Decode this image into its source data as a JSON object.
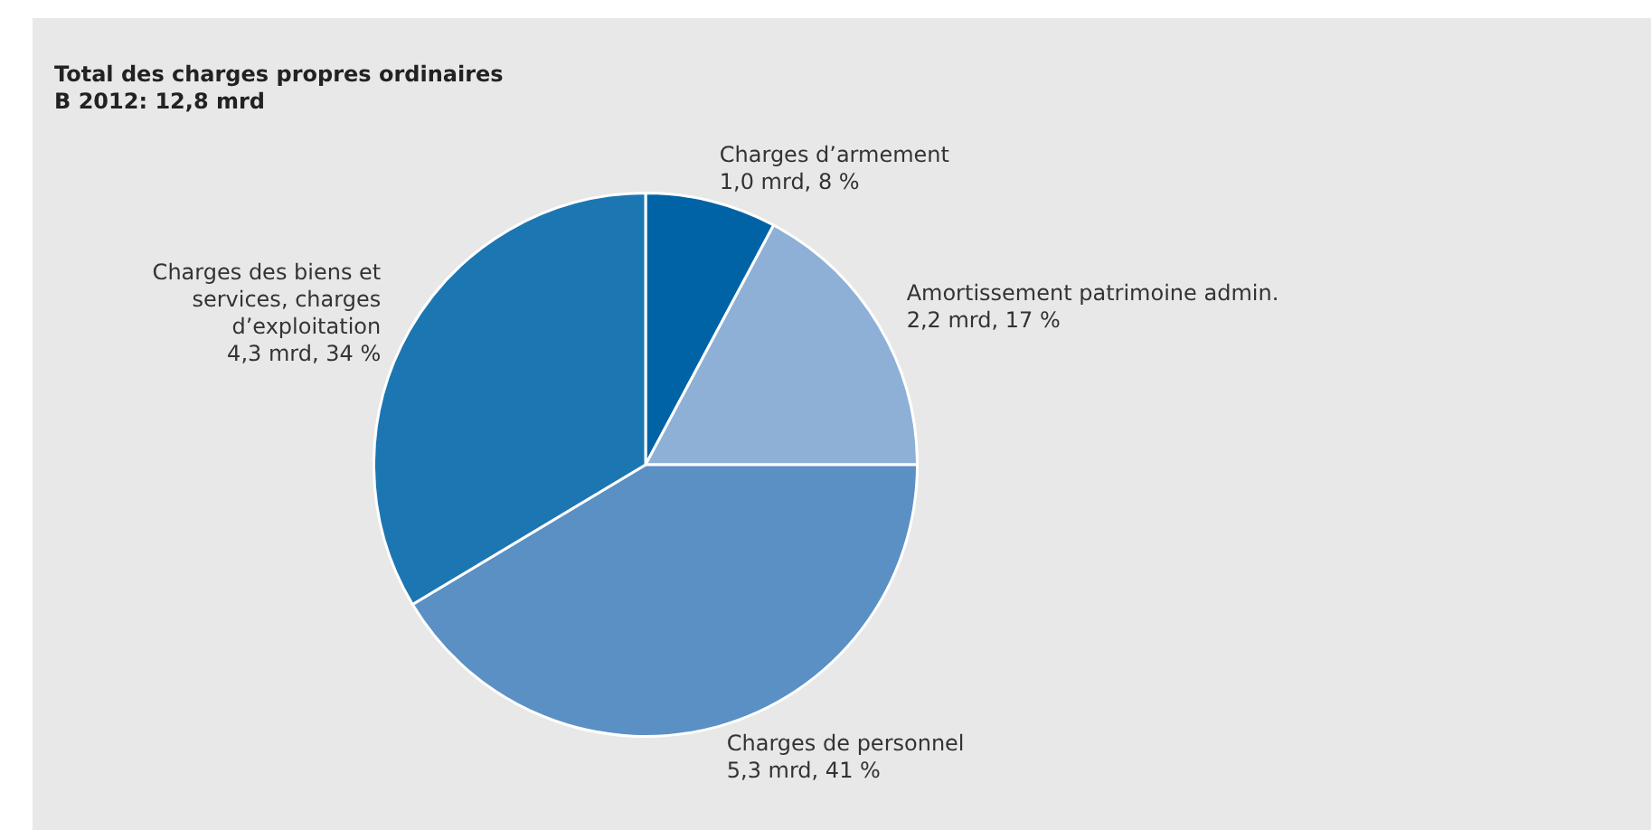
{
  "chart_data": {
    "type": "pie",
    "title": "Total des charges propres ordinaires",
    "subtitle": "B 2012: 12,8 mrd",
    "categories": [
      "Charges d’armement",
      "Amortissement patrimoine admin.",
      "Charges de personnel",
      "Charges des biens et services, charges d’exploitation"
    ],
    "values": [
      1.0,
      2.2,
      5.3,
      4.3
    ],
    "colors": [
      "#0063a6",
      "#8eb0d6",
      "#5b90c4",
      "#1c76b2"
    ],
    "value_labels": [
      "1,0 mrd, 8 %",
      "2,2 mrd, 17 %",
      "5,3 mrd, 41 %",
      "4,3 mrd, 34 %"
    ],
    "legend": false
  }
}
